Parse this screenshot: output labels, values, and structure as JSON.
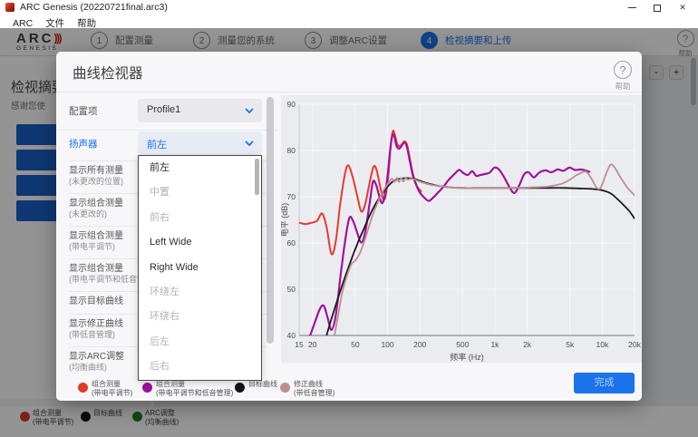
{
  "window": {
    "title": "ARC Genesis (20220721final.arc3)",
    "minimize": "─",
    "maximize": "❐",
    "close": "✕"
  },
  "menu": {
    "items": [
      "ARC",
      "文件",
      "帮助"
    ]
  },
  "nav": {
    "brand": {
      "line1": "ARC",
      "waves": ")))",
      "line2": "GENESIS"
    },
    "steps": [
      {
        "num": "1",
        "label": "配置测量",
        "active": false
      },
      {
        "num": "2",
        "label": "测量您的系统",
        "active": false
      },
      {
        "num": "3",
        "label": "调整ARC设置",
        "active": false
      },
      {
        "num": "4",
        "label": "检视摘要和上传",
        "active": true
      }
    ],
    "help": {
      "icon": "?",
      "label": "帮助"
    }
  },
  "background": {
    "heading": "检视摘要",
    "subtitle": "感谢您使",
    "buttons": [
      "",
      "",
      "",
      ""
    ],
    "zoom_out": "-",
    "zoom_in": "+",
    "legend": [
      {
        "color": "#d63a2e",
        "label": "组合测量",
        "sub": "(带电平调节)"
      },
      {
        "color": "#141414",
        "label": "目标曲线",
        "sub": ""
      },
      {
        "color": "#1e7e22",
        "label": "ARC调整",
        "sub": "(均衡曲线)"
      }
    ]
  },
  "dialog": {
    "title": "曲线检视器",
    "help": {
      "icon": "?",
      "label": "帮助"
    },
    "profile": {
      "label": "配置项",
      "value": "Profile1"
    },
    "speaker": {
      "label": "扬声器",
      "value": "前左"
    },
    "dropdown": {
      "items": [
        {
          "label": "前左",
          "state": "enabled",
          "selected": true
        },
        {
          "label": "中置",
          "state": "disabled"
        },
        {
          "label": "前右",
          "state": "disabled"
        },
        {
          "label": "Left Wide",
          "state": "enabled"
        },
        {
          "label": "Right Wide",
          "state": "enabled"
        },
        {
          "label": "环绕左",
          "state": "disabled"
        },
        {
          "label": "环绕右",
          "state": "disabled"
        },
        {
          "label": "后左",
          "state": "disabled"
        },
        {
          "label": "后右",
          "state": "disabled"
        }
      ]
    },
    "rows": [
      {
        "l1": "显示所有测量",
        "l2": "(未更改的位置)"
      },
      {
        "l1": "显示组合测量",
        "l2": "(未更改的)"
      },
      {
        "l1": "显示组合测量",
        "l2": "(带电平调节)"
      },
      {
        "l1": "显示组合测量",
        "l2": "(带电平调节和低音管理)"
      },
      {
        "l1": "显示目标曲线",
        "l2": ""
      },
      {
        "l1": "显示修正曲线",
        "l2": "(带低音管理)"
      },
      {
        "l1": "显示ARC调整",
        "l2": "(均衡曲线)"
      }
    ],
    "legend": [
      {
        "color": "#e23b2e",
        "label": "组合测量",
        "sub": "(带电平调节)"
      },
      {
        "color": "#9b109b",
        "label": "组合测量",
        "sub": "(带电平调节和低音管理)"
      },
      {
        "color": "#141414",
        "label": "目标曲线",
        "sub": ""
      },
      {
        "color": "#bc8f8f",
        "label": "修正曲线",
        "sub": "(带低音管理)"
      }
    ],
    "done_label": "完成"
  },
  "colors": {
    "accent": "#1a73e8",
    "chart_bg": "#ebecf0",
    "grid": "#f7f8fa"
  },
  "chart_data": {
    "type": "line",
    "xlabel": "频率 (Hz)",
    "ylabel": "电平 (dB)",
    "x_scale": "log",
    "xlim": [
      15,
      20000
    ],
    "ylim": [
      40,
      90
    ],
    "x_ticks": [
      15,
      20,
      50,
      100,
      200,
      500,
      1000,
      2000,
      5000,
      10000,
      20000
    ],
    "x_tick_labels": [
      "15",
      "20",
      "50",
      "100",
      "200",
      "500",
      "1k",
      "2k",
      "5k",
      "10k",
      "20k"
    ],
    "y_ticks": [
      40,
      50,
      60,
      70,
      80,
      90
    ],
    "grid_x": [
      20,
      50,
      100,
      200,
      500,
      1000,
      2000,
      5000,
      10000,
      20000
    ],
    "legend_position": "bottom",
    "series": [
      {
        "name": "组合测量 (带电平调节)",
        "color": "#e8392e",
        "width": 2,
        "points": [
          [
            15,
            64.4
          ],
          [
            17,
            64.1
          ],
          [
            19,
            64.3
          ],
          [
            22,
            64.8
          ],
          [
            24.5,
            66.4
          ],
          [
            27,
            63.5
          ],
          [
            30,
            57.6
          ],
          [
            33,
            60.5
          ],
          [
            36,
            68
          ],
          [
            40,
            74.8
          ],
          [
            43,
            76.8
          ],
          [
            47,
            74.5
          ],
          [
            52,
            70.3
          ],
          [
            57,
            66.8
          ],
          [
            62,
            68.5
          ],
          [
            68,
            73
          ],
          [
            74,
            76.5
          ],
          [
            79,
            75.8
          ],
          [
            86,
            71.8
          ],
          [
            92,
            69.3
          ],
          [
            97,
            70.8
          ],
          [
            102,
            75
          ],
          [
            107,
            81
          ],
          [
            112,
            84.2
          ],
          [
            117,
            83.4
          ],
          [
            123,
            81.4
          ],
          [
            130,
            80.9
          ],
          [
            137,
            81.4
          ],
          [
            144,
            82
          ],
          [
            152,
            81.2
          ],
          [
            162,
            78
          ],
          [
            173,
            74.8
          ],
          [
            188,
            72.3
          ],
          [
            205,
            71.2
          ]
        ]
      },
      {
        "name": "组合测量 (带电平调节和低音管理)",
        "color": "#a0129c",
        "width": 2.2,
        "points": [
          [
            19,
            40
          ],
          [
            21,
            42.8
          ],
          [
            23.5,
            45.8
          ],
          [
            25.5,
            46.4
          ],
          [
            27.5,
            44
          ],
          [
            30,
            41.2
          ],
          [
            33,
            44.5
          ],
          [
            36.5,
            53
          ],
          [
            40,
            60
          ],
          [
            44,
            65.4
          ],
          [
            48,
            64.6
          ],
          [
            52,
            62.3
          ],
          [
            57,
            60.1
          ],
          [
            62,
            62.5
          ],
          [
            68,
            68.5
          ],
          [
            73,
            73.2
          ],
          [
            78,
            72.6
          ],
          [
            84,
            70
          ],
          [
            89,
            68.6
          ],
          [
            94,
            70.2
          ],
          [
            100,
            74.5
          ],
          [
            105,
            79.5
          ],
          [
            110,
            83
          ],
          [
            115,
            83.2
          ],
          [
            121,
            81
          ],
          [
            128,
            80.4
          ],
          [
            135,
            81
          ],
          [
            143,
            81.7
          ],
          [
            151,
            80.9
          ],
          [
            161,
            77.8
          ],
          [
            172,
            74.6
          ],
          [
            186,
            72.4
          ],
          [
            200,
            70.9
          ],
          [
            220,
            69.8
          ],
          [
            242,
            69.1
          ],
          [
            265,
            69.8
          ],
          [
            295,
            70.9
          ],
          [
            330,
            72.1
          ],
          [
            370,
            73.6
          ],
          [
            420,
            74.9
          ],
          [
            465,
            75.8
          ],
          [
            510,
            75.1
          ],
          [
            560,
            74.7
          ],
          [
            615,
            75.5
          ],
          [
            670,
            74.5
          ],
          [
            730,
            74.7
          ],
          [
            800,
            74.9
          ],
          [
            890,
            75.2
          ],
          [
            990,
            76.3
          ],
          [
            1090,
            75.9
          ],
          [
            1220,
            74.2
          ],
          [
            1380,
            71.9
          ],
          [
            1520,
            70.8
          ],
          [
            1680,
            72.4
          ],
          [
            1870,
            74.8
          ],
          [
            2060,
            75.3
          ],
          [
            2300,
            74.2
          ],
          [
            2580,
            75.2
          ],
          [
            2950,
            75.7
          ],
          [
            3350,
            75.3
          ],
          [
            3850,
            75.9
          ],
          [
            4350,
            75.6
          ],
          [
            4950,
            76.3
          ],
          [
            5550,
            75.8
          ],
          [
            6250,
            75.9
          ],
          [
            6950,
            75.7
          ],
          [
            7600,
            75.4
          ]
        ]
      },
      {
        "name": "目标曲线",
        "color": "#1a1a1a",
        "width": 1.8,
        "points": [
          [
            27,
            40
          ],
          [
            30,
            43.6
          ],
          [
            34,
            47.6
          ],
          [
            38,
            51
          ],
          [
            43,
            54.6
          ],
          [
            48,
            57.6
          ],
          [
            54,
            60.6
          ],
          [
            60,
            63
          ],
          [
            67,
            65.6
          ],
          [
            75,
            67.9
          ],
          [
            83,
            69.6
          ],
          [
            92,
            71.1
          ],
          [
            101,
            72.3
          ],
          [
            112,
            73.3
          ],
          [
            125,
            73.8
          ],
          [
            140,
            74
          ],
          [
            160,
            74
          ],
          [
            182,
            73.8
          ],
          [
            215,
            73.2
          ],
          [
            255,
            72.7
          ],
          [
            305,
            72.3
          ],
          [
            400,
            72
          ],
          [
            520,
            71.9
          ],
          [
            700,
            71.9
          ],
          [
            1000,
            71.9
          ],
          [
            1500,
            71.9
          ],
          [
            2200,
            71.9
          ],
          [
            3200,
            71.9
          ],
          [
            4500,
            71.9
          ],
          [
            6000,
            71.8
          ],
          [
            8000,
            71.7
          ],
          [
            10000,
            71.4
          ],
          [
            12000,
            70.7
          ],
          [
            14000,
            69.4
          ],
          [
            16000,
            68.1
          ],
          [
            18000,
            66.8
          ],
          [
            20000,
            65.3
          ]
        ]
      },
      {
        "name": "修正曲线 (带低音管理)",
        "color": "#bd8f8f",
        "width": 1.8,
        "points": [
          [
            32,
            40
          ],
          [
            35,
            45
          ],
          [
            38,
            49.5
          ],
          [
            42,
            53
          ],
          [
            46,
            55.4
          ],
          [
            50,
            56.2
          ],
          [
            55,
            57.7
          ],
          [
            60,
            60
          ],
          [
            66,
            63
          ],
          [
            72,
            65.8
          ],
          [
            80,
            68.5
          ],
          [
            88,
            70.6
          ],
          [
            96,
            72.1
          ],
          [
            104,
            73.3
          ],
          [
            110,
            73.9
          ],
          [
            116,
            73.2
          ],
          [
            122,
            74.1
          ],
          [
            128,
            73.2
          ],
          [
            134,
            74.1
          ],
          [
            140,
            73.3
          ],
          [
            147,
            74
          ],
          [
            155,
            73.7
          ],
          [
            165,
            73.9
          ],
          [
            180,
            73.7
          ],
          [
            210,
            73.1
          ],
          [
            250,
            72.6
          ],
          [
            305,
            72.3
          ],
          [
            400,
            72
          ],
          [
            520,
            71.9
          ],
          [
            700,
            71.9
          ],
          [
            1000,
            71.9
          ],
          [
            1500,
            71.9
          ],
          [
            2100,
            72
          ],
          [
            2600,
            72.1
          ],
          [
            3100,
            72.2
          ],
          [
            3700,
            72.5
          ],
          [
            4300,
            72.9
          ],
          [
            5000,
            73.7
          ],
          [
            5700,
            74.6
          ],
          [
            6400,
            75.2
          ],
          [
            7100,
            75.4
          ],
          [
            7900,
            74
          ],
          [
            8900,
            71.9
          ],
          [
            9700,
            72
          ],
          [
            10800,
            74.8
          ],
          [
            11900,
            76.9
          ],
          [
            13000,
            76.4
          ],
          [
            14800,
            74.2
          ],
          [
            17000,
            72.1
          ],
          [
            20000,
            70.3
          ]
        ]
      }
    ]
  }
}
